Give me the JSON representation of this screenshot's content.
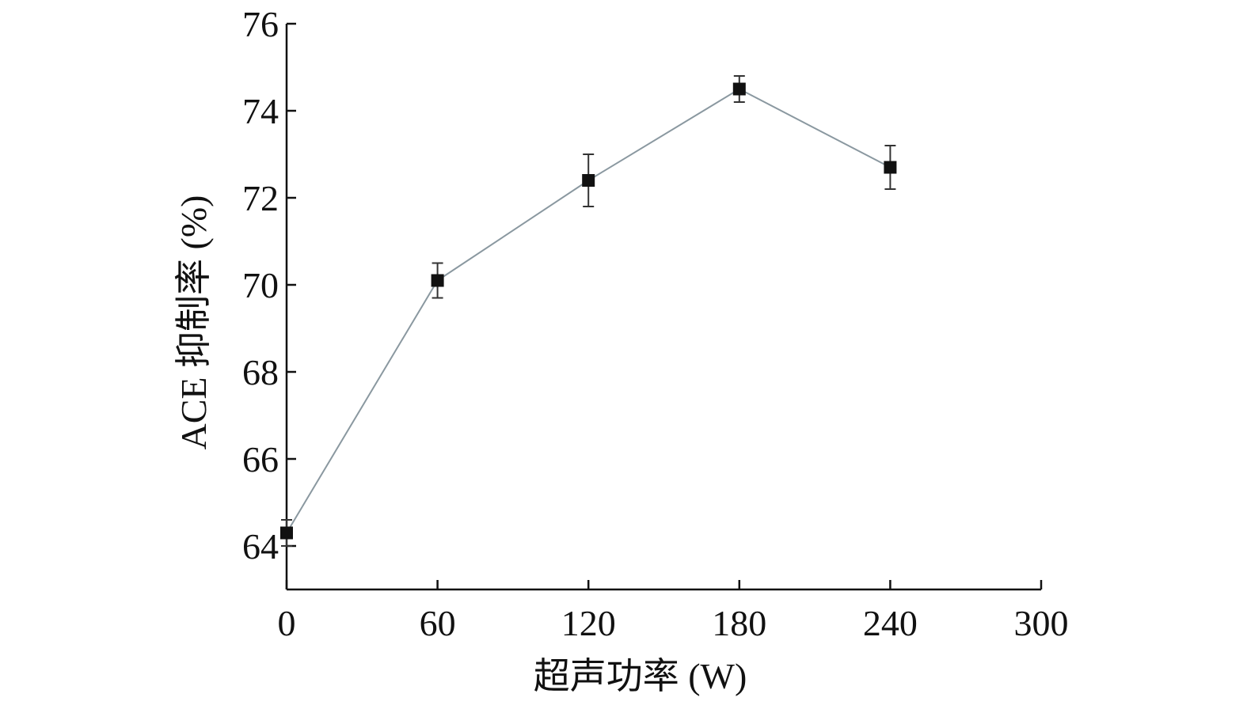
{
  "chart_data": {
    "type": "line",
    "xlabel": "超声功率 (W)",
    "ylabel": "ACE 抑制率 (%)",
    "xlim": [
      0,
      300
    ],
    "ylim": [
      63,
      76
    ],
    "x_ticks": [
      0,
      60,
      120,
      180,
      240,
      300
    ],
    "y_ticks": [
      64,
      66,
      68,
      70,
      72,
      74,
      76
    ],
    "x_tick_labels": [
      "0",
      "60",
      "120",
      "180",
      "240",
      "300"
    ],
    "y_tick_labels": [
      "64",
      "66",
      "68",
      "70",
      "72",
      "74",
      "76"
    ],
    "grid": false,
    "legend": "none",
    "series": [
      {
        "x": [
          0,
          60,
          120,
          180,
          240
        ],
        "y": [
          64.3,
          70.1,
          72.4,
          74.5,
          72.7
        ],
        "error": [
          0.3,
          0.4,
          0.6,
          0.3,
          0.5
        ],
        "marker": "square",
        "marker_color": "#111111",
        "line_color": "#8a98a0"
      }
    ]
  }
}
